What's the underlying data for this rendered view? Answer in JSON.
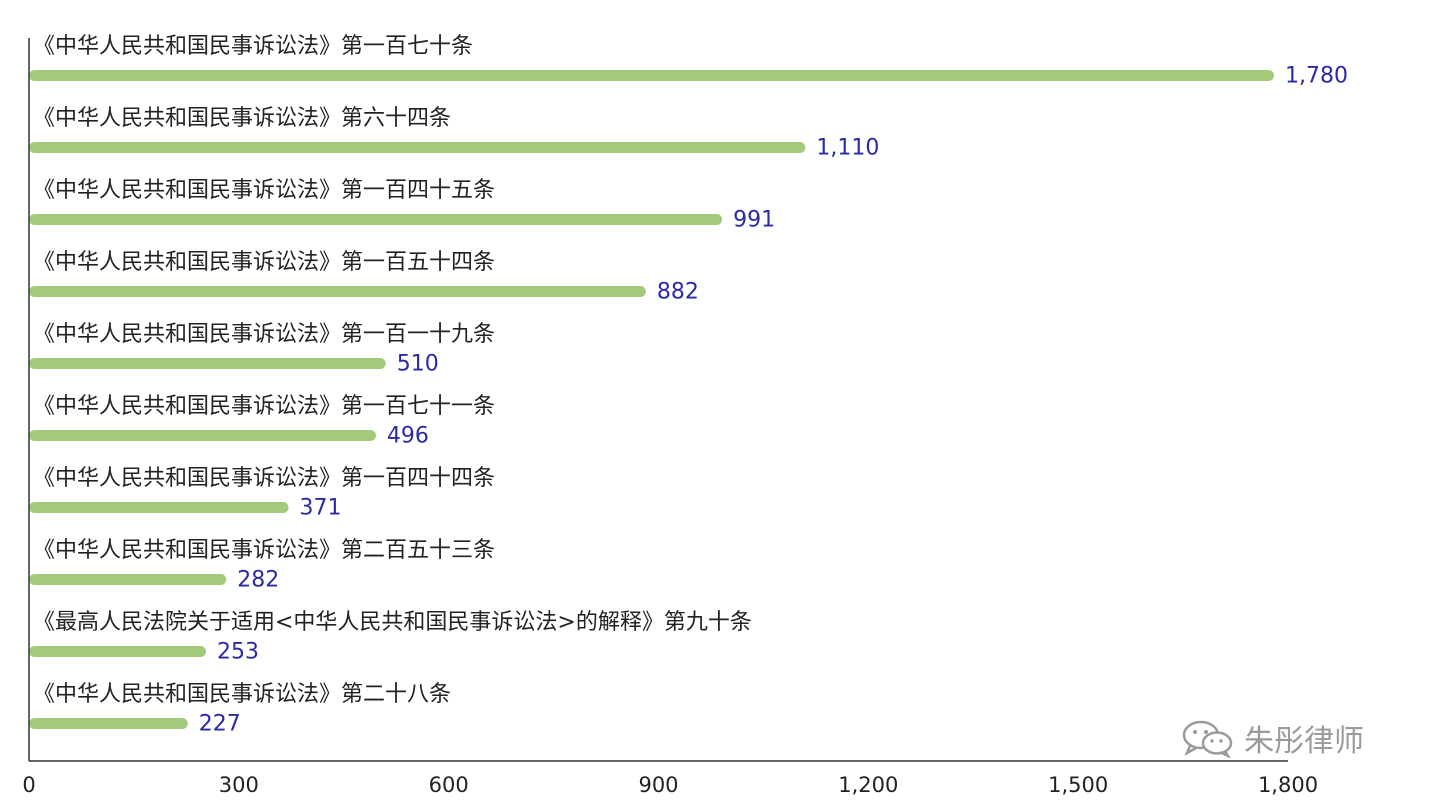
{
  "colors": {
    "bar": "#a3c97a",
    "value_label": "#2a2aa8",
    "axis": "#333333"
  },
  "watermark": {
    "text": "朱彤律师",
    "icon": "wechat-icon"
  },
  "chart_data": {
    "type": "bar",
    "orientation": "horizontal",
    "categories": [
      "《中华人民共和国民事诉讼法》第一百七十条",
      "《中华人民共和国民事诉讼法》第六十四条",
      "《中华人民共和国民事诉讼法》第一百四十五条",
      "《中华人民共和国民事诉讼法》第一百五十四条",
      "《中华人民共和国民事诉讼法》第一百一十九条",
      "《中华人民共和国民事诉讼法》第一百七十一条",
      "《中华人民共和国民事诉讼法》第一百四十四条",
      "《中华人民共和国民事诉讼法》第二百五十三条",
      "《最高人民法院关于适用<中华人民共和国民事诉讼法>的解释》第九十条",
      "《中华人民共和国民事诉讼法》第二十八条"
    ],
    "values": [
      1780,
      1110,
      991,
      882,
      510,
      496,
      371,
      282,
      253,
      227
    ],
    "value_labels": [
      "1,780",
      "1,110",
      "991",
      "882",
      "510",
      "496",
      "371",
      "282",
      "253",
      "227"
    ],
    "x_ticks": [
      0,
      300,
      600,
      900,
      1200,
      1500,
      1800
    ],
    "x_tick_labels": [
      "0",
      "300",
      "600",
      "900",
      "1,200",
      "1,500",
      "1,800"
    ],
    "xlim": [
      0,
      1800
    ],
    "grid": false,
    "legend": "none"
  }
}
